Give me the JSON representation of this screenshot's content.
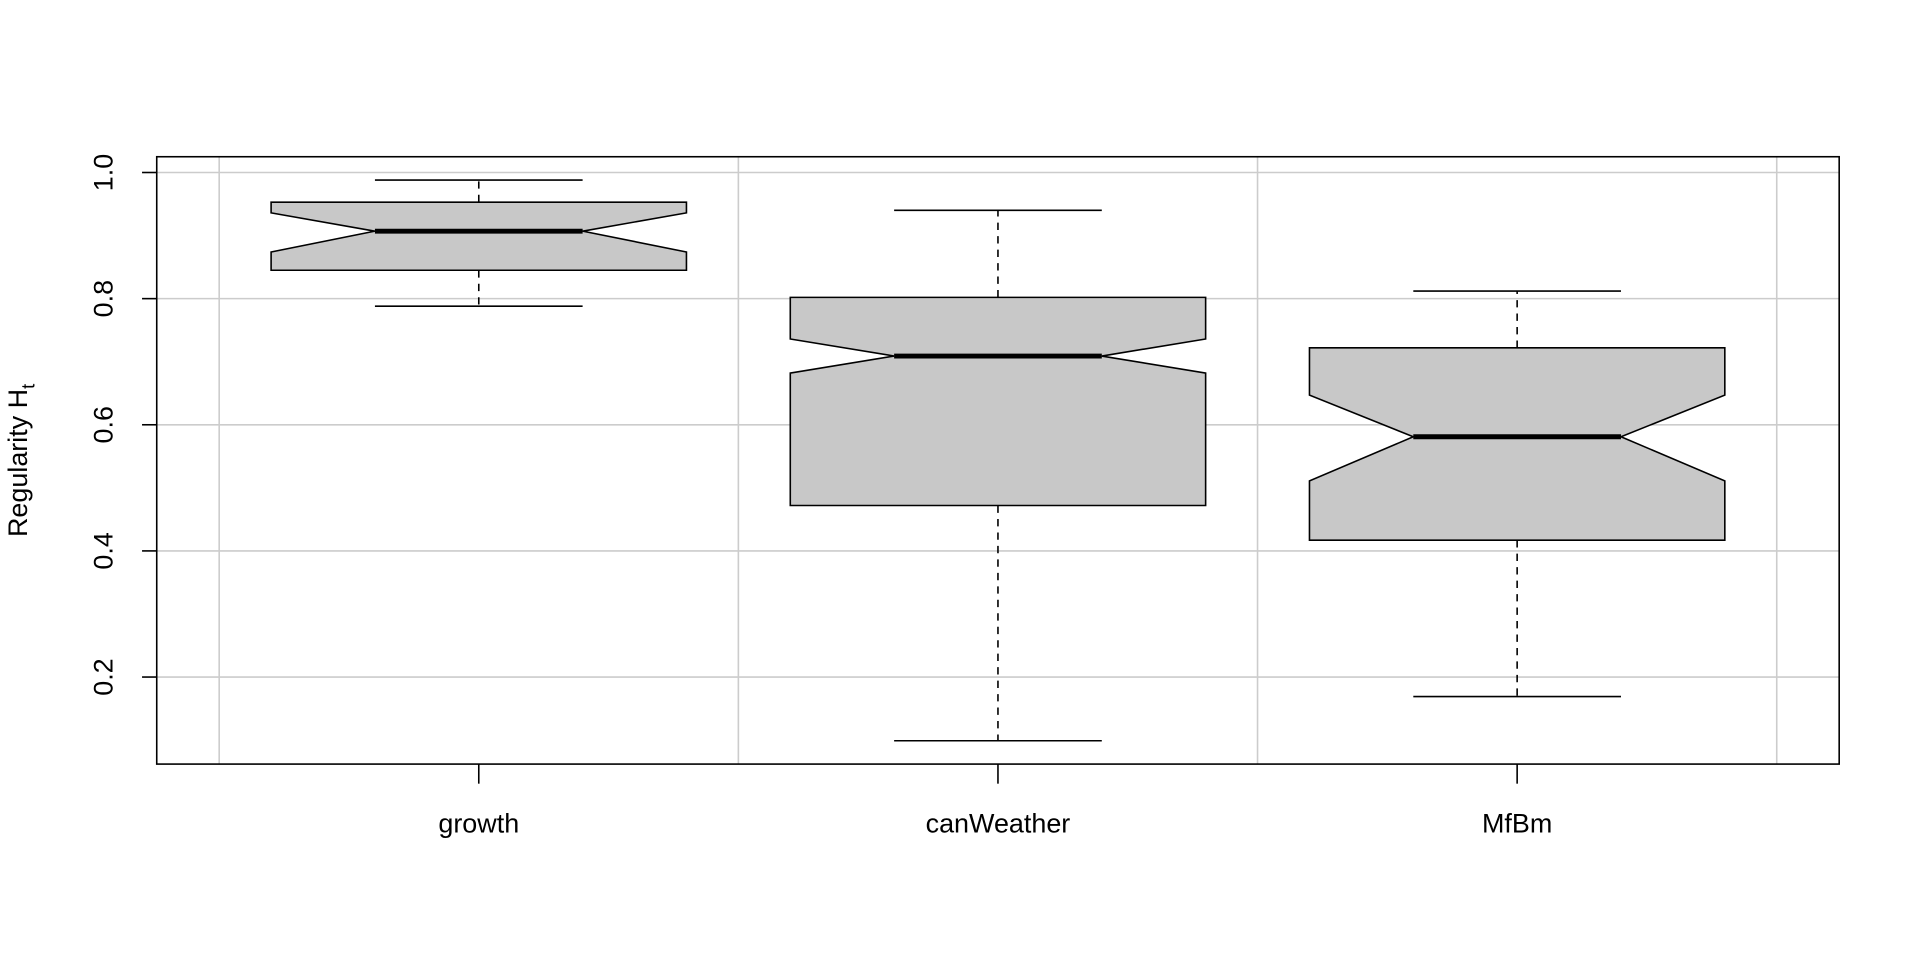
{
  "chart_data": {
    "type": "boxplot",
    "notched": true,
    "title": "",
    "xlabel": "",
    "ylabel": "Regularity H",
    "ylabel_subscript": "t",
    "ylim": [
      0.062,
      1.025
    ],
    "yticks": [
      "0.2",
      "0.4",
      "0.6",
      "0.8",
      "1.0"
    ],
    "grid": true,
    "box_fill": "#c8c8c8",
    "grid_color": "#cccccc",
    "categories": [
      "growth",
      "canWeather",
      "MfBm"
    ],
    "boxes": [
      {
        "name": "growth",
        "whisker_low": 0.788,
        "q1": 0.845,
        "notch_low": 0.874,
        "median": 0.907,
        "notch_high": 0.936,
        "q3": 0.953,
        "whisker_high": 0.988
      },
      {
        "name": "canWeather",
        "whisker_low": 0.099,
        "q1": 0.472,
        "notch_low": 0.682,
        "median": 0.709,
        "notch_high": 0.736,
        "q3": 0.802,
        "whisker_high": 0.94
      },
      {
        "name": "MfBm",
        "whisker_low": 0.169,
        "q1": 0.417,
        "notch_low": 0.511,
        "median": 0.581,
        "notch_high": 0.647,
        "q3": 0.722,
        "whisker_high": 0.812
      }
    ]
  }
}
